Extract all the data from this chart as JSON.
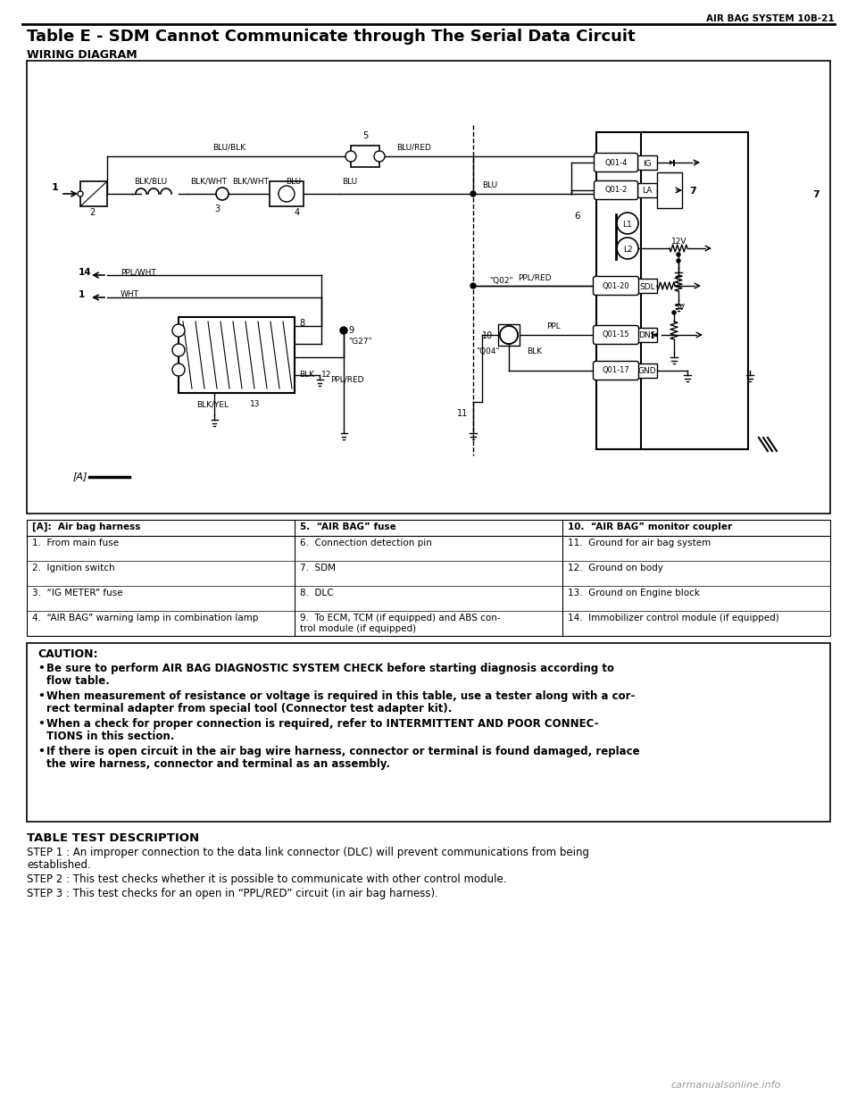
{
  "header_text": "AIR BAG SYSTEM 10B-21",
  "title": "Table E - SDM Cannot Communicate through The Serial Data Circuit",
  "wiring_label": "WIRING DIAGRAM",
  "bg_color": "#ffffff",
  "table_headers": [
    "[A]:  Air bag harness",
    "5.  “AIR BAG” fuse",
    "10.  “AIR BAG” monitor coupler"
  ],
  "table_rows": [
    [
      "1.  From main fuse",
      "6.  Connection detection pin",
      "11.  Ground for air bag system"
    ],
    [
      "2.  Ignition switch",
      "7.  SDM",
      "12.  Ground on body"
    ],
    [
      "3.  “IG METER” fuse",
      "8.  DLC",
      "13.  Ground on Engine block"
    ],
    [
      "4.  “AIR BAG” warning lamp in combination lamp",
      "9.  To ECM, TCM (if equipped) and ABS con-\ntrol module (if equipped)",
      "14.  Immobilizer control module (if equipped)"
    ]
  ],
  "caution_title": "CAUTION:",
  "caution_bullets": [
    [
      "Be sure to perform ",
      "AIR BAG DIAGNOSTIC SYSTEM CHECK",
      " before starting diagnosis according to\nflow table."
    ],
    [
      "When measurement of resistance or voltage is required in this table, use a tester along with a cor-\nrect terminal adapter from special tool (",
      "Connector test adapter kit",
      ")."
    ],
    [
      "When a check for proper connection is required, refer to ",
      "INTERMITTENT AND POOR CONNEC-\nTIONS",
      " in this section."
    ],
    [
      "If there is open circuit in the air bag wire harness, connector or terminal is found damaged, replace\nthe wire harness, connector and ",
      "terminal as an assembly.",
      ""
    ]
  ],
  "test_desc_title": "TABLE TEST DESCRIPTION",
  "test_steps": [
    "STEP 1 : An improper connection to the data link connector (DLC) will prevent communications from being\nestablished.",
    "STEP 2 : This test checks whether it is possible to communicate with other control module.",
    "STEP 3 : This test checks for an open in “PPL/RED” circuit (in air bag harness)."
  ],
  "watermark": "carmanualsonline.info"
}
